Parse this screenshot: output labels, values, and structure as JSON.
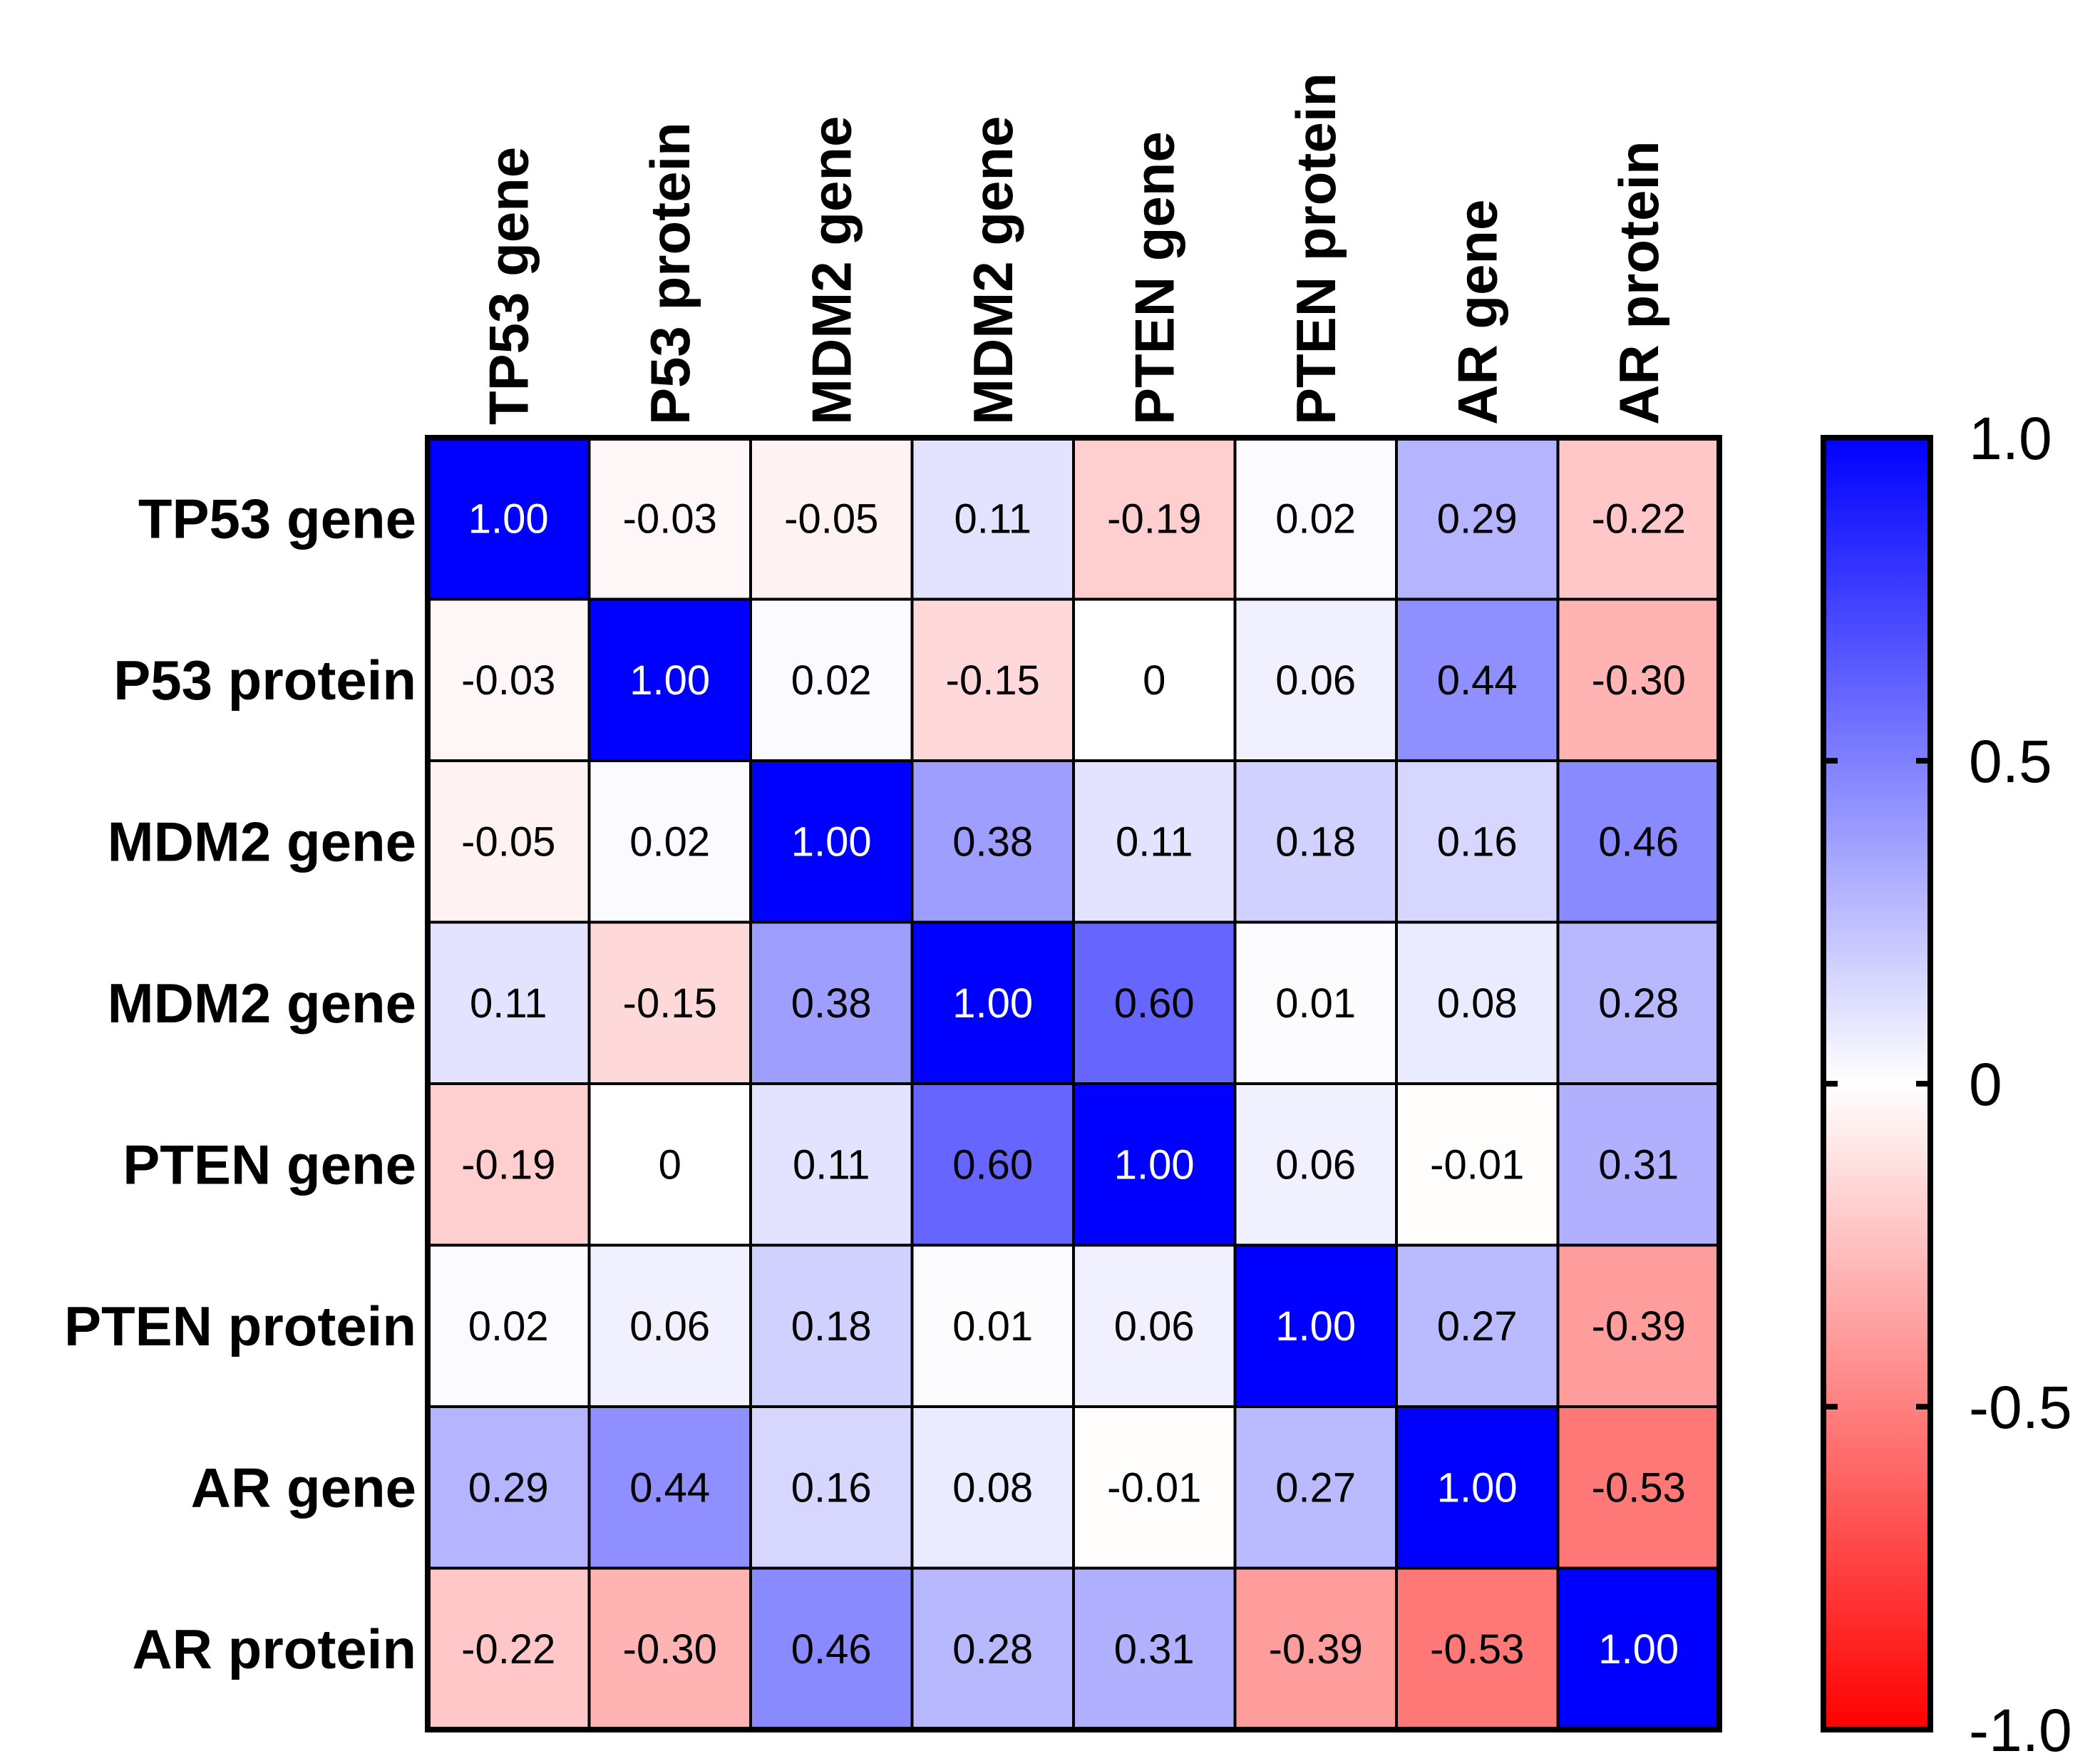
{
  "chart_data": {
    "type": "heatmap",
    "title": "",
    "row_labels": [
      "TP53 gene",
      "P53 protein",
      "MDM2 gene",
      "MDM2 gene",
      "PTEN gene",
      "PTEN protein",
      "AR gene",
      "AR protein"
    ],
    "col_labels": [
      "TP53 gene",
      "P53 protein",
      "MDM2 gene",
      "MDM2 gene",
      "PTEN gene",
      "PTEN protein",
      "AR gene",
      "AR protein"
    ],
    "values": [
      [
        1.0,
        -0.03,
        -0.05,
        0.11,
        -0.19,
        0.02,
        0.29,
        -0.22
      ],
      [
        -0.03,
        1.0,
        0.02,
        -0.15,
        0,
        0.06,
        0.44,
        -0.3
      ],
      [
        -0.05,
        0.02,
        1.0,
        0.38,
        0.11,
        0.18,
        0.16,
        0.46
      ],
      [
        0.11,
        -0.15,
        0.38,
        1.0,
        0.6,
        0.01,
        0.08,
        0.28
      ],
      [
        -0.19,
        0,
        0.11,
        0.6,
        1.0,
        0.06,
        -0.01,
        0.31
      ],
      [
        0.02,
        0.06,
        0.18,
        0.01,
        0.06,
        1.0,
        0.27,
        -0.39
      ],
      [
        0.29,
        0.44,
        0.16,
        0.08,
        -0.01,
        0.27,
        1.0,
        -0.53
      ],
      [
        -0.22,
        -0.3,
        0.46,
        0.28,
        0.31,
        -0.39,
        -0.53,
        1.0
      ]
    ],
    "value_labels": [
      [
        "1.00",
        "-0.03",
        "-0.05",
        "0.11",
        "-0.19",
        "0.02",
        "0.29",
        "-0.22"
      ],
      [
        "-0.03",
        "1.00",
        "0.02",
        "-0.15",
        "0",
        "0.06",
        "0.44",
        "-0.30"
      ],
      [
        "-0.05",
        "0.02",
        "1.00",
        "0.38",
        "0.11",
        "0.18",
        "0.16",
        "0.46"
      ],
      [
        "0.11",
        "-0.15",
        "0.38",
        "1.00",
        "0.60",
        "0.01",
        "0.08",
        "0.28"
      ],
      [
        "-0.19",
        "0",
        "0.11",
        "0.60",
        "1.00",
        "0.06",
        "-0.01",
        "0.31"
      ],
      [
        "0.02",
        "0.06",
        "0.18",
        "0.01",
        "0.06",
        "1.00",
        "0.27",
        "-0.39"
      ],
      [
        "0.29",
        "0.44",
        "0.16",
        "0.08",
        "-0.01",
        "0.27",
        "1.00",
        "-0.53"
      ],
      [
        "-0.22",
        "-0.30",
        "0.46",
        "0.28",
        "0.31",
        "-0.39",
        "-0.53",
        "1.00"
      ]
    ],
    "colorbar": {
      "range": [
        -1.0,
        1.0
      ],
      "ticks": [
        1.0,
        0.5,
        0,
        -0.5,
        -1.0
      ],
      "tick_labels": [
        "1.0",
        "0.5",
        "0",
        "-0.5",
        "-1.0"
      ],
      "colors": {
        "max": "#0000ff",
        "mid": "#ffffff",
        "min": "#ff0000"
      }
    }
  }
}
